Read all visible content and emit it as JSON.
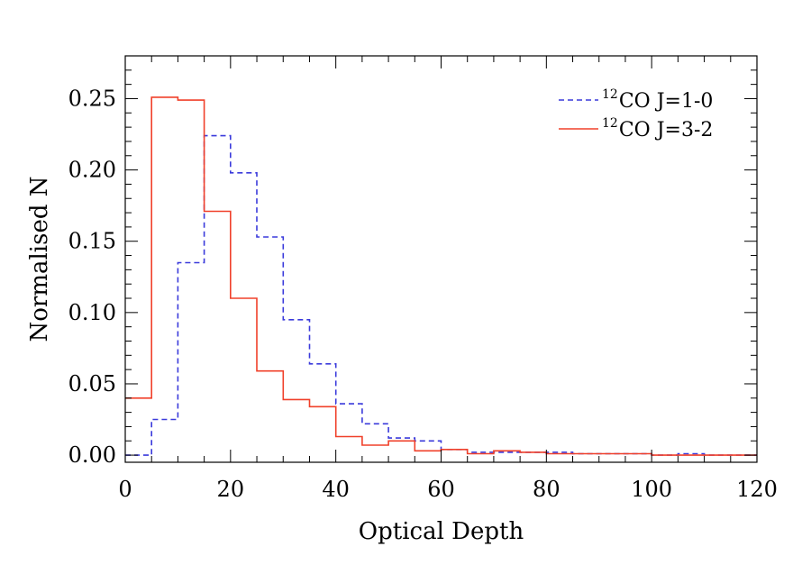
{
  "chart_data": {
    "type": "histogram",
    "title": "",
    "xlabel": "Optical Depth",
    "ylabel": "Normalised N",
    "xlim": [
      0,
      120
    ],
    "ylim": [
      -0.005,
      0.28
    ],
    "x_ticks": [
      0,
      20,
      40,
      60,
      80,
      100,
      120
    ],
    "x_tick_labels": [
      "0",
      "20",
      "40",
      "60",
      "80",
      "100",
      "120"
    ],
    "y_ticks": [
      0.0,
      0.05,
      0.1,
      0.15,
      0.2,
      0.25
    ],
    "y_tick_labels": [
      "0.00",
      "0.05",
      "0.10",
      "0.15",
      "0.20",
      "0.25"
    ],
    "grid": false,
    "legend_position": "top-right",
    "bin_edges": [
      0,
      5,
      10,
      15,
      20,
      25,
      30,
      35,
      40,
      45,
      50,
      55,
      60,
      65,
      70,
      75,
      80,
      85,
      90,
      95,
      100,
      105,
      110,
      115,
      120
    ],
    "series": [
      {
        "name_sup": "12",
        "name": "CO J=1-0",
        "color": "#3a3adb",
        "line_style": "dashed",
        "values": [
          0.0,
          0.025,
          0.135,
          0.224,
          0.198,
          0.153,
          0.095,
          0.064,
          0.036,
          0.022,
          0.012,
          0.01,
          0.004,
          0.002,
          0.002,
          0.002,
          0.002,
          0.001,
          0.001,
          0.001,
          0.0,
          0.001,
          0.0,
          0.0
        ]
      },
      {
        "name_sup": "12",
        "name": "CO J=3-2",
        "color": "#f0402a",
        "line_style": "solid",
        "values": [
          0.04,
          0.251,
          0.249,
          0.171,
          0.11,
          0.059,
          0.039,
          0.034,
          0.013,
          0.007,
          0.01,
          0.003,
          0.004,
          0.001,
          0.003,
          0.002,
          0.001,
          0.001,
          0.001,
          0.001,
          0.0,
          0.0,
          0.0,
          0.0
        ]
      }
    ]
  }
}
